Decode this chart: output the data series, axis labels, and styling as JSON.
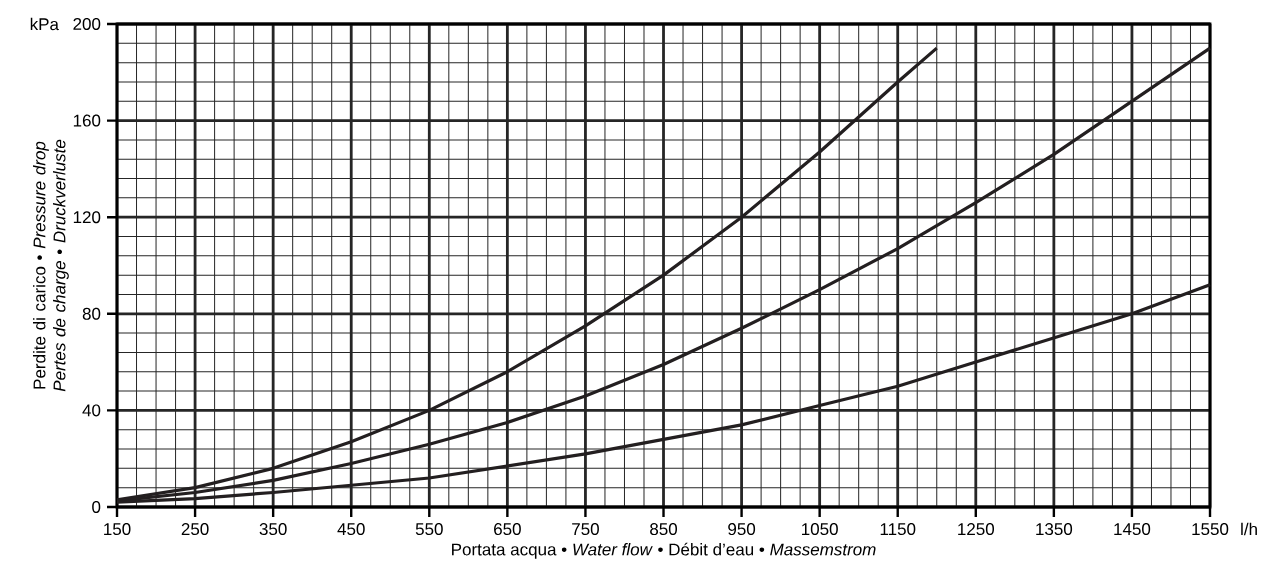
{
  "chart_data": {
    "type": "line",
    "xlabel": "Portata acqua • *Water flow* • Débit d’eau • *Massemstrom*",
    "ylabel": "Perdite di carico • *Pressure drop* *Pertes de charge* • *Druckverluste*",
    "annotations": [
      "kPa",
      "l/h"
    ],
    "xlim": [
      150,
      1550
    ],
    "xticks": [
      150,
      250,
      350,
      450,
      550,
      650,
      750,
      850,
      950,
      1050,
      1150,
      1250,
      1350,
      1450,
      1550
    ],
    "ylim": [
      0,
      200
    ],
    "yticks": [
      0,
      40,
      80,
      120,
      160,
      200
    ],
    "grid": true,
    "marker": "none",
    "line_style": "solid",
    "series": [
      {
        "color": "#231f20",
        "x": [
          150,
          250,
          350,
          450,
          550,
          650,
          750,
          850,
          950,
          1050,
          1150,
          1200
        ],
        "values": [
          3,
          8,
          16,
          27,
          40,
          56,
          75,
          96,
          120,
          147,
          176,
          190
        ]
      },
      {
        "color": "#231f20",
        "x": [
          150,
          250,
          350,
          450,
          550,
          650,
          750,
          850,
          950,
          1050,
          1150,
          1250,
          1350,
          1450,
          1550
        ],
        "values": [
          2.5,
          6,
          11,
          18,
          26,
          35,
          46,
          59,
          74,
          90,
          107,
          126,
          146,
          168,
          190
        ]
      },
      {
        "color": "#231f20",
        "x": [
          150,
          250,
          350,
          450,
          550,
          650,
          750,
          850,
          950,
          1050,
          1150,
          1250,
          1350,
          1450,
          1550
        ],
        "values": [
          2,
          3.5,
          6,
          9,
          12,
          17,
          22,
          28,
          34,
          42,
          50,
          60,
          70,
          80,
          92
        ]
      }
    ]
  }
}
